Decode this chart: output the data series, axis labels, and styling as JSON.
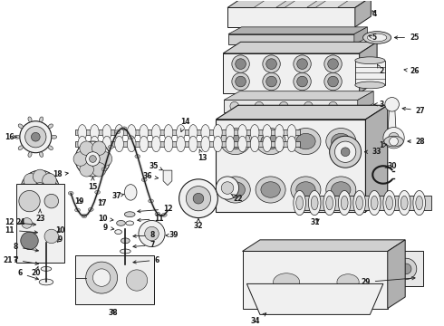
{
  "bg_color": "#ffffff",
  "lc": "#1a1a1a",
  "fc_light": "#f0f0f0",
  "fc_mid": "#d0d0d0",
  "fc_dark": "#b0b0b0",
  "label_fs": 5.5
}
